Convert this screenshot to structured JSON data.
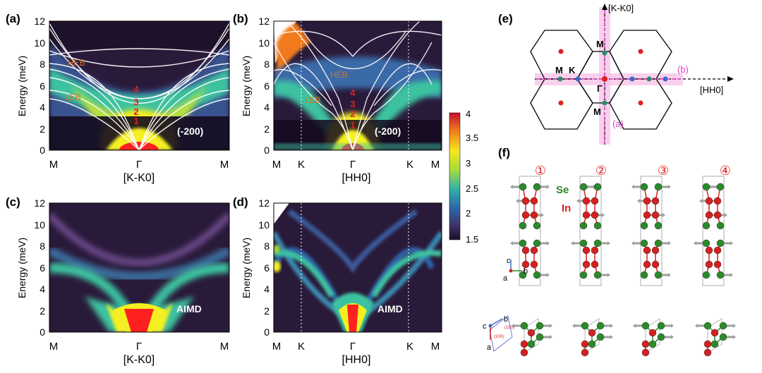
{
  "panels": {
    "a": {
      "label": "(a)",
      "ylabel": "Energy (meV)",
      "xlabel": "[K-K0]",
      "ticks_x": [
        "M",
        "Γ",
        "M"
      ],
      "annotation": "(-200)",
      "band_labels": {
        "heb": "HEB",
        "leb": "LEB"
      },
      "mode_numbers": [
        "1",
        "2",
        "3",
        "4"
      ]
    },
    "b": {
      "label": "(b)",
      "ylabel": "Energy (meV)",
      "xlabel": "[HH0]",
      "ticks_x": [
        "M",
        "K",
        "Γ",
        "K",
        "M"
      ],
      "annotation": "(-200)",
      "band_labels": {
        "heb": "HEB",
        "leb": "LEB"
      },
      "mode_numbers": [
        "1",
        "2",
        "3",
        "4"
      ]
    },
    "c": {
      "label": "(c)",
      "ylabel": "Energy (meV)",
      "xlabel": "[K-K0]",
      "ticks_x": [
        "M",
        "Γ",
        "M"
      ],
      "annotation": "AIMD"
    },
    "d": {
      "label": "(d)",
      "ylabel": "Energy (meV)",
      "xlabel": "[HH0]",
      "ticks_x": [
        "M",
        "K",
        "Γ",
        "K",
        "M"
      ],
      "annotation": "AIMD"
    }
  },
  "y_ticks": [
    "0",
    "2",
    "4",
    "6",
    "8",
    "10",
    "12"
  ],
  "colorbar": {
    "ticks": [
      "4",
      "3.5",
      "3",
      "2.5",
      "2",
      "1.5"
    ],
    "stops": [
      "#c8102e",
      "#f07a1a",
      "#f4e81c",
      "#a6dc3a",
      "#2fb0a8",
      "#2f63a8",
      "#3d2f63",
      "#1a1024"
    ]
  },
  "panel_e": {
    "label": "(e)",
    "axis_up": "[K-K0]",
    "axis_right": "[HH0]",
    "line_a": "(a)",
    "line_b": "(b)",
    "points": {
      "gamma": "Γ",
      "m_top": "M",
      "m_left": "M",
      "k": "K",
      "m_bottom": "M"
    }
  },
  "panel_f": {
    "label": "(f)",
    "modes": [
      "①",
      "②",
      "③",
      "④"
    ],
    "atom_se": "Se",
    "atom_in": "In",
    "axes1": {
      "c": "c",
      "a": "a",
      "b": "b"
    },
    "axes2": {
      "c": "c",
      "a": "a",
      "b": "b"
    },
    "plane_labels": {
      "p1": "(100)",
      "p2": "(110)"
    }
  },
  "colors": {
    "in_atom": "#d42020",
    "se_atom": "#2a8a2a",
    "highlight": "#e040c0",
    "arrow": "#a0a0a0"
  }
}
